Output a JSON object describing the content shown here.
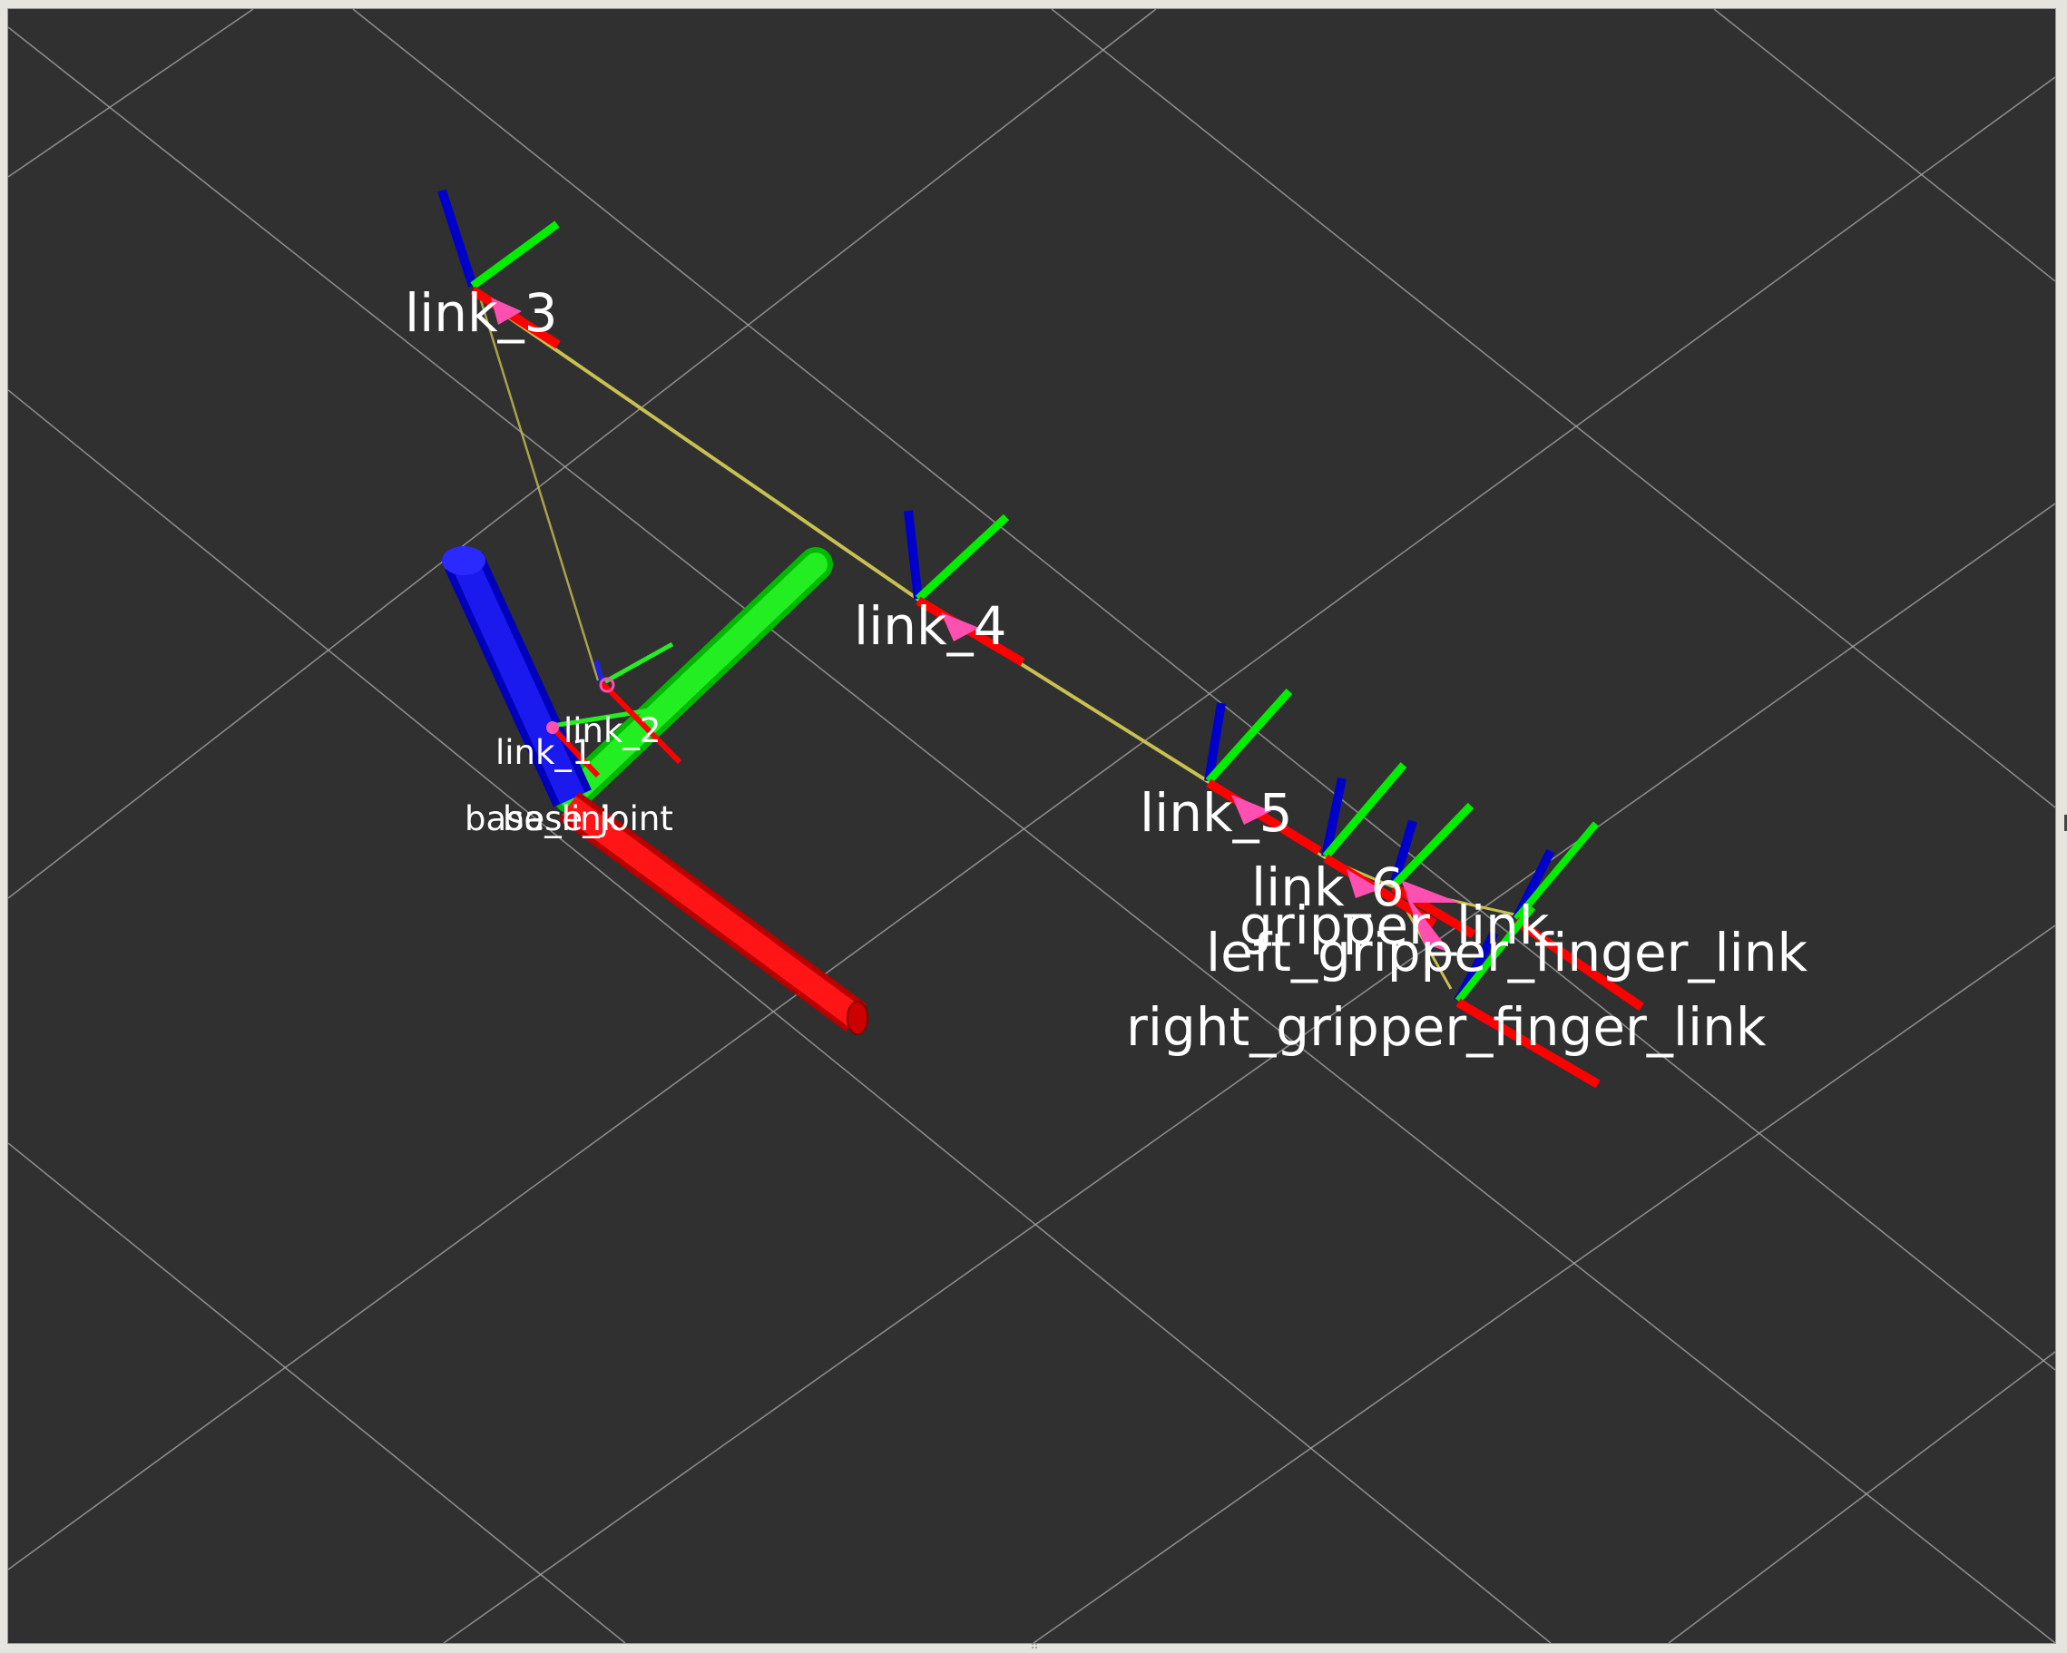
{
  "view": {
    "background": "#303030",
    "grid_color": "#a8a8a8",
    "axis_colors": {
      "x": "#ff0000",
      "y": "#00ff00",
      "z": "#0000cc"
    },
    "connector_color": "#c8c050",
    "arrow_color": "#ff4fb0"
  },
  "frames": {
    "link_3": "link_3",
    "link_4": "link_4",
    "link_5": "link_5",
    "link_6": "link_6",
    "gripper_link": "gripper_link",
    "left_gripper_finger_link": "left_gripper_finger_link",
    "right_gripper_finger_link": "right_gripper_finger_link",
    "link_2": "link_2",
    "link_1": "link_1",
    "base_link": "base_link",
    "base_joint": "base_joint"
  }
}
